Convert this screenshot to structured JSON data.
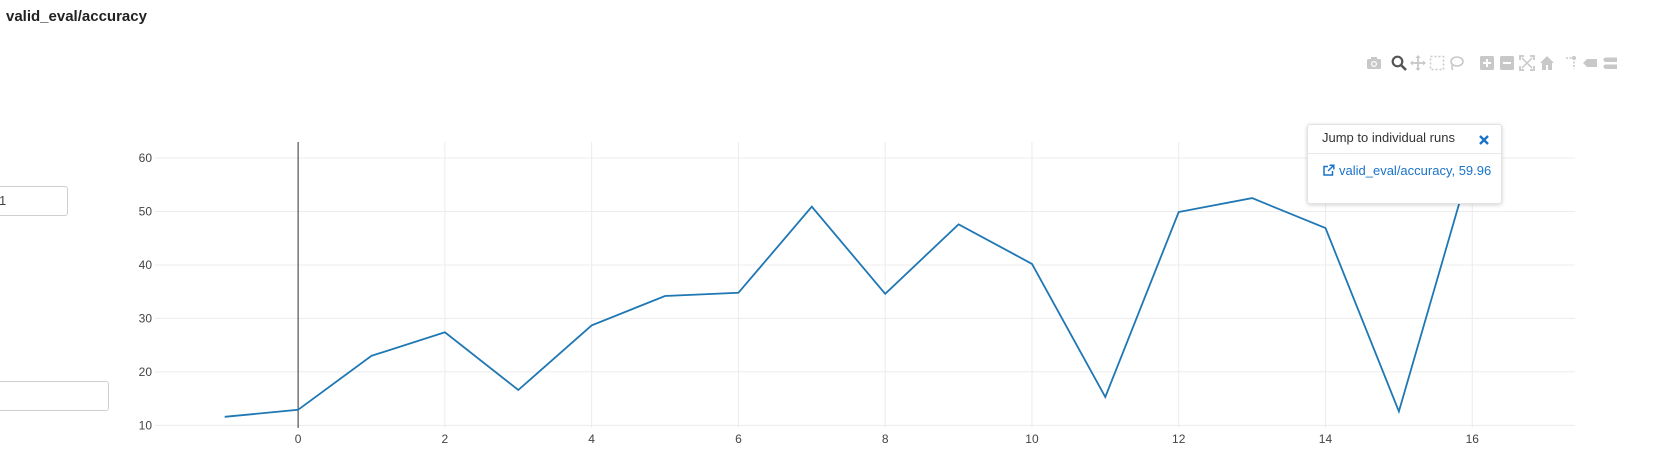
{
  "header": {
    "title": "valid_eval/accuracy"
  },
  "inputs": {
    "first_value": "1",
    "second_value": ""
  },
  "toolbar": {
    "icons": [
      "camera-icon",
      "zoom-icon",
      "pan-icon",
      "box-select-icon",
      "lasso-select-icon",
      "zoom-in-icon",
      "zoom-out-icon",
      "autoscale-icon",
      "reset-axes-icon",
      "spike-lines-icon",
      "hover-closest-icon",
      "hover-compare-icon"
    ]
  },
  "popup": {
    "header": "Jump to individual runs",
    "link_text": "valid_eval/accuracy, 59.96",
    "link_color": "#1a73c8",
    "close_color": "#1a73c8"
  },
  "chart_data": {
    "type": "line",
    "title": "valid_eval/accuracy",
    "xlabel": "",
    "ylabel": "",
    "x_ticks": [
      "0",
      "2",
      "4",
      "6",
      "8",
      "10",
      "12",
      "14",
      "16"
    ],
    "y_ticks": [
      "10",
      "20",
      "30",
      "40",
      "50",
      "60"
    ],
    "xlim": [
      -1.95,
      17.4
    ],
    "ylim": [
      9.5,
      63
    ],
    "grid": true,
    "line_color": "#1f77b4",
    "hover_x": 0,
    "series": [
      {
        "x": [
          -1,
          0,
          1,
          2,
          3,
          4,
          5,
          6,
          7,
          8,
          9,
          10,
          11,
          12,
          13,
          14,
          15,
          16
        ],
        "y": [
          11.6,
          12.9,
          23.0,
          27.4,
          16.6,
          28.7,
          34.2,
          34.8,
          50.9,
          34.6,
          47.6,
          40.2,
          15.3,
          49.9,
          52.5,
          46.9,
          12.6,
          59.96
        ]
      }
    ]
  }
}
